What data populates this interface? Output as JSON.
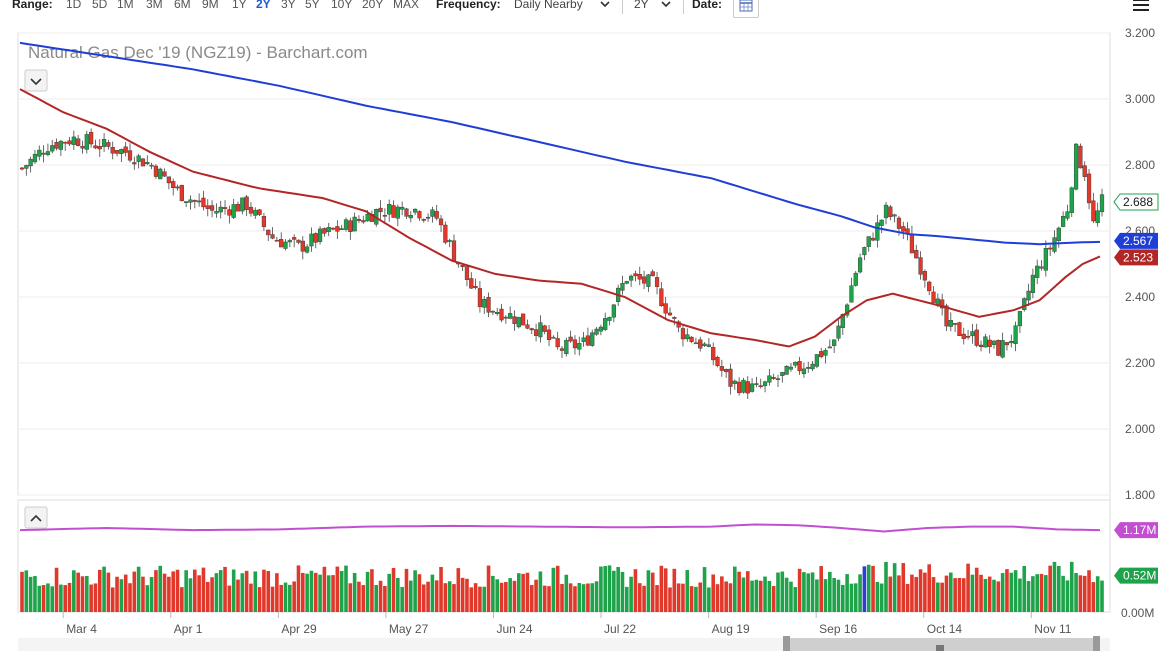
{
  "toolbar": {
    "range_label": "Range:",
    "ranges": [
      "1D",
      "5D",
      "1M",
      "3M",
      "6M",
      "9M",
      "1Y",
      "2Y",
      "3Y",
      "5Y",
      "10Y",
      "20Y",
      "MAX"
    ],
    "active_range": "2Y",
    "frequency_label": "Frequency:",
    "frequency_value": "Daily Nearby",
    "period_value": "2Y",
    "date_label": "Date:"
  },
  "colors": {
    "up": "#1fa34a",
    "down": "#e0392b",
    "ma_long": "#1f3ed6",
    "ma_short": "#b32626",
    "volume_avg": "#c24fd1",
    "accent": "#1e5dd8"
  },
  "chart_data": {
    "type": "candlestick",
    "title": "Natural Gas Dec '19 (NGZ19) - Barchart.com",
    "y_ticks": [
      "3.200",
      "3.000",
      "2.800",
      "2.600",
      "2.400",
      "2.200",
      "2.000",
      "1.800"
    ],
    "ylim": [
      1.8,
      3.2
    ],
    "x_ticks": [
      "Mar 4",
      "Apr 1",
      "Apr 29",
      "May 27",
      "Jun 24",
      "Jul 22",
      "Aug 19",
      "Sep 16",
      "Oct 14",
      "Nov 11"
    ],
    "last_price_label": "2.688",
    "ma_long_label": "2.567",
    "ma_short_label": "2.523",
    "volume_avg_label": "1.17M",
    "volume_last_label": "0.52M",
    "volume_zero_label": "0.00M",
    "volume_ylim": [
      0,
      1.6
    ],
    "ma_long_series": [
      [
        0,
        3.17
      ],
      [
        20,
        3.13
      ],
      [
        40,
        3.09
      ],
      [
        60,
        3.04
      ],
      [
        80,
        2.98
      ],
      [
        100,
        2.93
      ],
      [
        120,
        2.87
      ],
      [
        140,
        2.81
      ],
      [
        160,
        2.76
      ],
      [
        170,
        2.72
      ],
      [
        180,
        2.68
      ],
      [
        190,
        2.645
      ],
      [
        198,
        2.61
      ],
      [
        206,
        2.59
      ],
      [
        212,
        2.585
      ],
      [
        220,
        2.575
      ],
      [
        228,
        2.565
      ],
      [
        236,
        2.56
      ],
      [
        244,
        2.565
      ],
      [
        250,
        2.567
      ]
    ],
    "ma_short_series": [
      [
        0,
        3.03
      ],
      [
        10,
        2.96
      ],
      [
        20,
        2.91
      ],
      [
        30,
        2.84
      ],
      [
        40,
        2.78
      ],
      [
        55,
        2.73
      ],
      [
        70,
        2.7
      ],
      [
        80,
        2.66
      ],
      [
        90,
        2.58
      ],
      [
        100,
        2.51
      ],
      [
        110,
        2.47
      ],
      [
        120,
        2.45
      ],
      [
        130,
        2.44
      ],
      [
        140,
        2.4
      ],
      [
        150,
        2.33
      ],
      [
        160,
        2.29
      ],
      [
        170,
        2.27
      ],
      [
        178,
        2.25
      ],
      [
        184,
        2.28
      ],
      [
        190,
        2.34
      ],
      [
        196,
        2.39
      ],
      [
        202,
        2.41
      ],
      [
        208,
        2.39
      ],
      [
        214,
        2.37
      ],
      [
        222,
        2.34
      ],
      [
        230,
        2.36
      ],
      [
        236,
        2.39
      ],
      [
        242,
        2.46
      ],
      [
        246,
        2.5
      ],
      [
        250,
        2.523
      ]
    ],
    "volume_avg_series": [
      [
        0,
        1.17
      ],
      [
        20,
        1.2
      ],
      [
        40,
        1.17
      ],
      [
        60,
        1.18
      ],
      [
        80,
        1.22
      ],
      [
        100,
        1.23
      ],
      [
        120,
        1.22
      ],
      [
        140,
        1.21
      ],
      [
        160,
        1.22
      ],
      [
        170,
        1.25
      ],
      [
        180,
        1.24
      ],
      [
        190,
        1.2
      ],
      [
        200,
        1.15
      ],
      [
        210,
        1.2
      ],
      [
        220,
        1.22
      ],
      [
        230,
        1.22
      ],
      [
        240,
        1.18
      ],
      [
        250,
        1.17
      ]
    ],
    "ohlc_keypoints": [
      [
        0,
        2.79
      ],
      [
        6,
        2.86
      ],
      [
        12,
        2.88
      ],
      [
        18,
        2.86
      ],
      [
        24,
        2.84
      ],
      [
        30,
        2.8
      ],
      [
        36,
        2.72
      ],
      [
        44,
        2.66
      ],
      [
        52,
        2.68
      ],
      [
        58,
        2.58
      ],
      [
        64,
        2.55
      ],
      [
        70,
        2.59
      ],
      [
        76,
        2.62
      ],
      [
        82,
        2.66
      ],
      [
        90,
        2.67
      ],
      [
        96,
        2.64
      ],
      [
        100,
        2.53
      ],
      [
        106,
        2.38
      ],
      [
        112,
        2.35
      ],
      [
        120,
        2.3
      ],
      [
        124,
        2.24
      ],
      [
        130,
        2.26
      ],
      [
        136,
        2.36
      ],
      [
        140,
        2.46
      ],
      [
        146,
        2.44
      ],
      [
        152,
        2.3
      ],
      [
        158,
        2.25
      ],
      [
        164,
        2.14
      ],
      [
        170,
        2.12
      ],
      [
        176,
        2.16
      ],
      [
        182,
        2.2
      ],
      [
        188,
        2.26
      ],
      [
        194,
        2.52
      ],
      [
        200,
        2.66
      ],
      [
        204,
        2.6
      ],
      [
        210,
        2.44
      ],
      [
        214,
        2.31
      ],
      [
        220,
        2.28
      ],
      [
        226,
        2.24
      ],
      [
        230,
        2.29
      ],
      [
        234,
        2.46
      ],
      [
        238,
        2.55
      ],
      [
        242,
        2.67
      ],
      [
        244,
        2.84
      ],
      [
        246,
        2.78
      ],
      [
        248,
        2.62
      ],
      [
        250,
        2.688
      ]
    ]
  }
}
